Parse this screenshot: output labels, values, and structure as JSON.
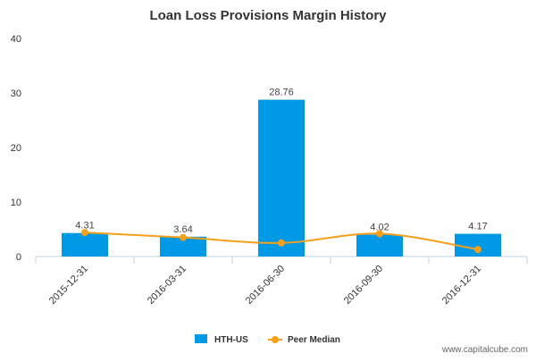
{
  "chart_data": {
    "type": "bar",
    "title": "Loan Loss Provisions Margin History",
    "categories": [
      "2015-12-31",
      "2016-03-31",
      "2016-06-30",
      "2016-09-30",
      "2016-12-31"
    ],
    "series": [
      {
        "name": "HTH-US",
        "type": "bar",
        "values": [
          4.31,
          3.64,
          28.76,
          4.02,
          4.17
        ],
        "color": "#0099e6"
      },
      {
        "name": "Peer Median",
        "type": "line",
        "values": [
          4.4,
          3.5,
          2.5,
          4.2,
          1.3
        ],
        "color": "#f5a01a"
      }
    ],
    "ylim": [
      0,
      40
    ],
    "yticks": [
      0,
      10,
      20,
      30,
      40
    ],
    "xlabel": "",
    "ylabel": "",
    "grid": false,
    "legend": "bottom-center",
    "data_labels": [
      "4.31",
      "3.64",
      "28.76",
      "4.02",
      "4.17"
    ]
  },
  "watermark": "www.capitalcube.com"
}
